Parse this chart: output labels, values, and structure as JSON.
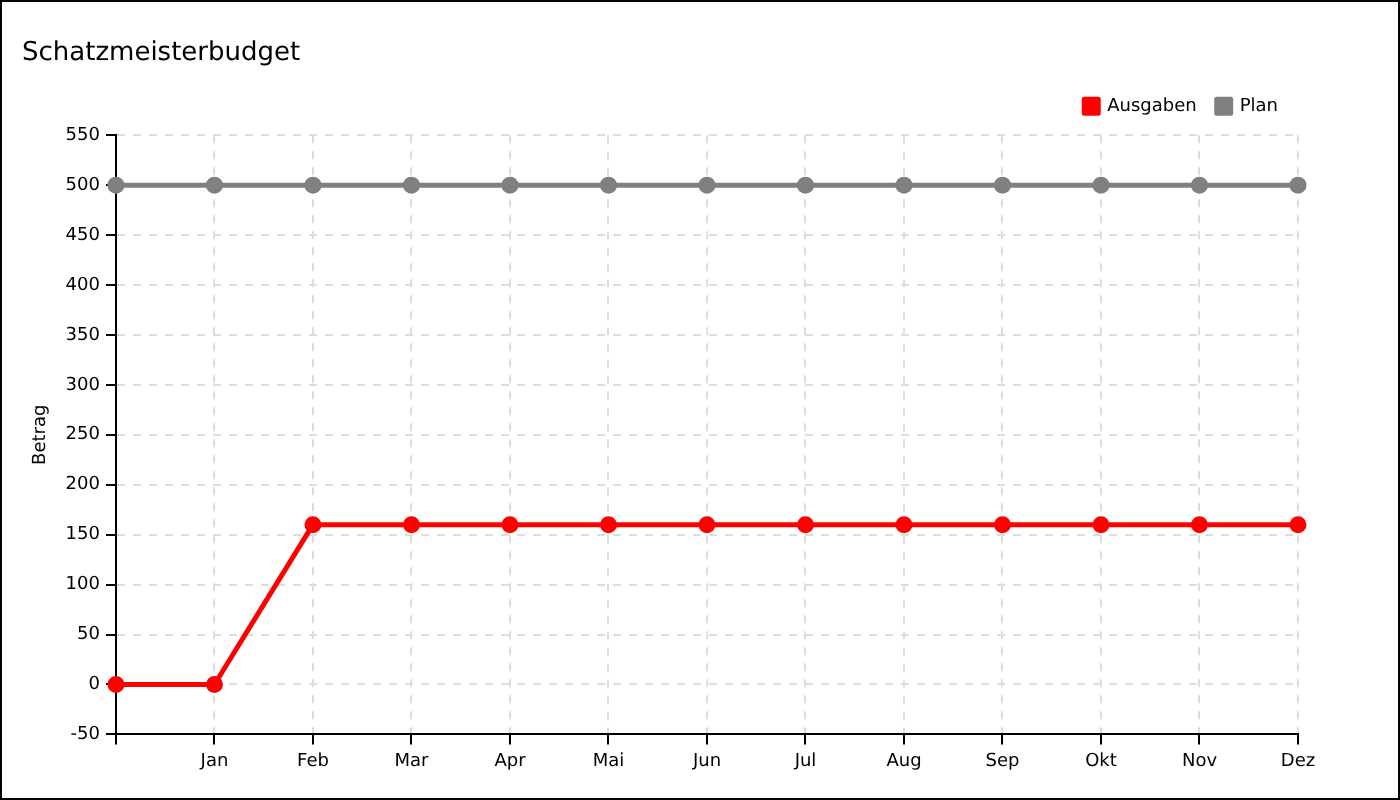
{
  "chart_data": {
    "type": "line",
    "title": "Schatzmeisterbudget",
    "ylabel": "Betrag",
    "categories": [
      null,
      "Jan",
      "Feb",
      "Mar",
      "Apr",
      "Mai",
      "Jun",
      "Jul",
      "Aug",
      "Sep",
      "Okt",
      "Nov",
      "Dez"
    ],
    "series": [
      {
        "name": "Ausgaben",
        "color": "#ff0000",
        "values": [
          0,
          0,
          160,
          160,
          160,
          160,
          160,
          160,
          160,
          160,
          160,
          160,
          160
        ]
      },
      {
        "name": "Plan",
        "color": "#808080",
        "values": [
          500,
          500,
          500,
          500,
          500,
          500,
          500,
          500,
          500,
          500,
          500,
          500,
          500
        ]
      }
    ],
    "ylim": [
      -50,
      550
    ],
    "yticks": [
      -50,
      0,
      50,
      100,
      150,
      200,
      250,
      300,
      350,
      400,
      450,
      500,
      550
    ],
    "grid": true,
    "legend": "top right",
    "marker": "circle",
    "line_style": "solid"
  }
}
